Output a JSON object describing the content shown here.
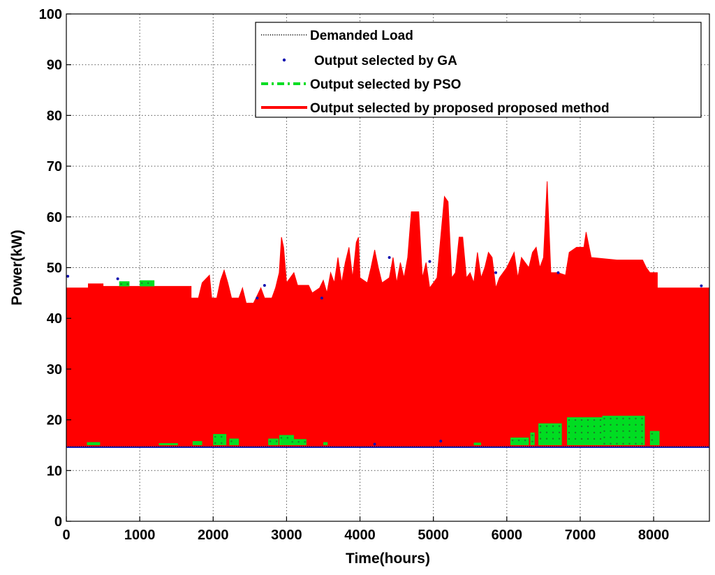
{
  "chart_data": {
    "type": "area",
    "xlabel": "Time(hours)",
    "ylabel": "Power(kW)",
    "xlim": [
      0,
      8760
    ],
    "ylim": [
      0,
      100
    ],
    "x_ticks": [
      0,
      1000,
      2000,
      3000,
      4000,
      5000,
      6000,
      7000,
      8000
    ],
    "y_ticks": [
      0,
      10,
      20,
      30,
      40,
      50,
      60,
      70,
      80,
      90,
      100
    ],
    "grid": true,
    "legend_position": "top-right",
    "legend": [
      "Demanded Load",
      "Output selected by GA",
      "Output selected by PSO",
      "Output selected by proposed proposed method"
    ],
    "colors": {
      "demanded_load": "#000000",
      "ga": "#1010b0",
      "pso": "#00dd22",
      "proposed": "#ff0000"
    },
    "series": [
      {
        "name": "Output selected by proposed proposed method",
        "kind": "band",
        "upper": [
          [
            0,
            46
          ],
          [
            300,
            46
          ],
          [
            300,
            46.8
          ],
          [
            500,
            46.8
          ],
          [
            500,
            46.3
          ],
          [
            1700,
            46.3
          ],
          [
            1700,
            44
          ],
          [
            1800,
            44
          ],
          [
            1850,
            47
          ],
          [
            1950,
            48.5
          ],
          [
            1980,
            44
          ],
          [
            2050,
            44
          ],
          [
            2100,
            47.5
          ],
          [
            2150,
            49.5
          ],
          [
            2200,
            47
          ],
          [
            2250,
            44
          ],
          [
            2350,
            44
          ],
          [
            2400,
            46
          ],
          [
            2450,
            43
          ],
          [
            2550,
            43
          ],
          [
            2600,
            44.5
          ],
          [
            2650,
            46
          ],
          [
            2700,
            44
          ],
          [
            2800,
            44
          ],
          [
            2850,
            46
          ],
          [
            2900,
            49
          ],
          [
            2930,
            56
          ],
          [
            2960,
            54
          ],
          [
            3000,
            47
          ],
          [
            3100,
            49
          ],
          [
            3150,
            46.5
          ],
          [
            3300,
            46.5
          ],
          [
            3350,
            45
          ],
          [
            3450,
            46
          ],
          [
            3500,
            47.5
          ],
          [
            3550,
            45
          ],
          [
            3600,
            49
          ],
          [
            3650,
            47
          ],
          [
            3700,
            52
          ],
          [
            3750,
            47
          ],
          [
            3800,
            51
          ],
          [
            3850,
            54
          ],
          [
            3900,
            48
          ],
          [
            3950,
            55
          ],
          [
            3980,
            56
          ],
          [
            4000,
            48
          ],
          [
            4100,
            47
          ],
          [
            4150,
            50
          ],
          [
            4200,
            53.5
          ],
          [
            4250,
            50
          ],
          [
            4300,
            47
          ],
          [
            4400,
            48
          ],
          [
            4450,
            52
          ],
          [
            4500,
            47
          ],
          [
            4550,
            51
          ],
          [
            4600,
            48
          ],
          [
            4650,
            52
          ],
          [
            4700,
            61
          ],
          [
            4800,
            61
          ],
          [
            4850,
            48
          ],
          [
            4900,
            51
          ],
          [
            4950,
            46
          ],
          [
            5000,
            47
          ],
          [
            5050,
            48
          ],
          [
            5100,
            56
          ],
          [
            5150,
            64
          ],
          [
            5200,
            63
          ],
          [
            5250,
            48
          ],
          [
            5300,
            49
          ],
          [
            5350,
            56
          ],
          [
            5400,
            56
          ],
          [
            5450,
            48
          ],
          [
            5500,
            49
          ],
          [
            5550,
            47
          ],
          [
            5600,
            53
          ],
          [
            5650,
            48
          ],
          [
            5700,
            50
          ],
          [
            5750,
            53
          ],
          [
            5800,
            52
          ],
          [
            5850,
            46
          ],
          [
            5900,
            48
          ],
          [
            6000,
            50
          ],
          [
            6100,
            53
          ],
          [
            6150,
            48
          ],
          [
            6200,
            52
          ],
          [
            6300,
            50
          ],
          [
            6350,
            53
          ],
          [
            6400,
            54
          ],
          [
            6450,
            50
          ],
          [
            6500,
            52
          ],
          [
            6550,
            67
          ],
          [
            6600,
            49
          ],
          [
            6700,
            49
          ],
          [
            6800,
            48.5
          ],
          [
            6850,
            53
          ],
          [
            6950,
            54
          ],
          [
            7050,
            54
          ],
          [
            7080,
            57
          ],
          [
            7150,
            52
          ],
          [
            7500,
            51.5
          ],
          [
            7850,
            51.5
          ],
          [
            7900,
            50
          ],
          [
            7950,
            49
          ],
          [
            8050,
            49
          ],
          [
            8050,
            46
          ],
          [
            8760,
            46
          ]
        ],
        "lower": [
          [
            0,
            14.8
          ],
          [
            8760,
            14.8
          ]
        ]
      },
      {
        "name": "Output selected by PSO",
        "kind": "visible_regions",
        "patches": [
          [
            280,
            460,
            15,
            15.6
          ],
          [
            720,
            860,
            46.3,
            47.3
          ],
          [
            1000,
            1200,
            46.3,
            47.5
          ],
          [
            1260,
            1520,
            15,
            15.4
          ],
          [
            1720,
            1850,
            15,
            15.8
          ],
          [
            2000,
            2180,
            15,
            17.2
          ],
          [
            2220,
            2350,
            15,
            16.3
          ],
          [
            2750,
            2890,
            15,
            16.3
          ],
          [
            2900,
            3100,
            15,
            17
          ],
          [
            3050,
            3270,
            15,
            16.2
          ],
          [
            3500,
            3560,
            15,
            15.6
          ],
          [
            5550,
            5650,
            15,
            15.5
          ],
          [
            6050,
            6300,
            15,
            16.5
          ],
          [
            6320,
            6380,
            15,
            17.5
          ],
          [
            6430,
            6750,
            15,
            19.3
          ],
          [
            6820,
            7300,
            15,
            20.5
          ],
          [
            7300,
            7880,
            15,
            20.8
          ],
          [
            7950,
            8080,
            15,
            17.8
          ]
        ]
      },
      {
        "name": "Output selected by GA",
        "kind": "scatter_markers",
        "points": [
          [
            20,
            48.3
          ],
          [
            700,
            47.8
          ],
          [
            2600,
            44
          ],
          [
            2700,
            46.5
          ],
          [
            3480,
            44
          ],
          [
            4400,
            52
          ],
          [
            4950,
            51.2
          ],
          [
            5850,
            49
          ],
          [
            6700,
            49
          ],
          [
            8650,
            46.4
          ],
          [
            5100,
            15.8
          ],
          [
            4200,
            15.2
          ]
        ]
      },
      {
        "name": "Demanded Load",
        "kind": "line",
        "points": [
          [
            0,
            14.6
          ],
          [
            8760,
            14.6
          ]
        ]
      }
    ]
  }
}
